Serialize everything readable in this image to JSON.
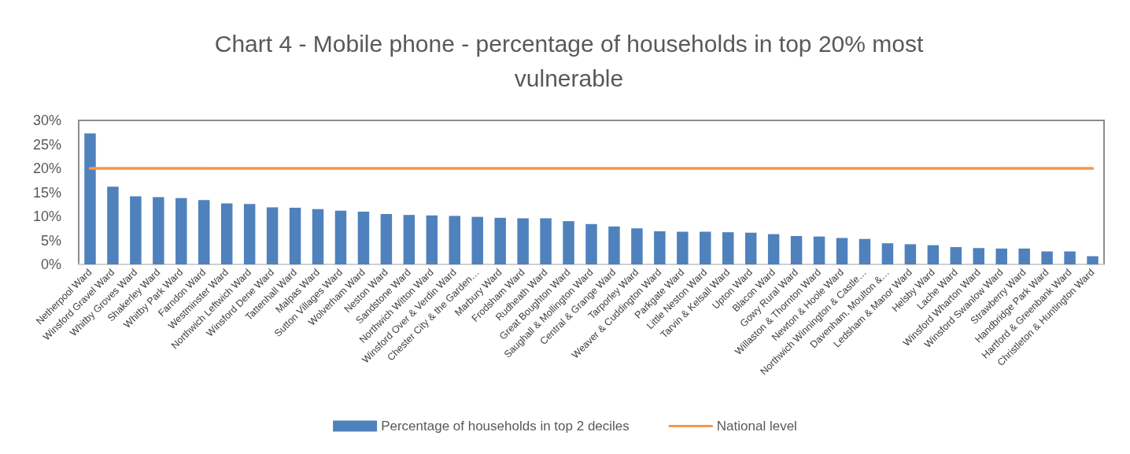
{
  "chart_data": {
    "type": "bar",
    "title": "Chart 4 - Mobile phone - percentage of households in top 20% most vulnerable",
    "categories": [
      "Netherpool Ward",
      "Winsford Gravel Ward",
      "Whitby Groves Ward",
      "Shakerley Ward",
      "Whitby Park Ward",
      "Farndon Ward",
      "Westminster Ward",
      "Northwich Leftwich Ward",
      "Winsford Dene Ward",
      "Tattenhall Ward",
      "Malpas Ward",
      "Sutton Villages Ward",
      "Wolverham Ward",
      "Neston Ward",
      "Sandstone Ward",
      "Northwich Witton Ward",
      "Winsford Over & Verdin Ward",
      "Chester City & the Garden…",
      "Marbury Ward",
      "Frodsham Ward",
      "Rudheath Ward",
      "Great Boughton Ward",
      "Saughall & Mollington Ward",
      "Central & Grange Ward",
      "Tarporley Ward",
      "Weaver & Cuddington Ward",
      "Parkgate Ward",
      "Little Neston Ward",
      "Tarvin & Kelsall Ward",
      "Upton Ward",
      "Blacon Ward",
      "Gowy Rural Ward",
      "Willaston & Thornton Ward",
      "Newton & Hoole Ward",
      "Northwich Winnington & Castle…",
      "Davenham, Moulton &…",
      "Ledsham & Manor Ward",
      "Helsby Ward",
      "Lache Ward",
      "Winsford Wharton Ward",
      "Winsford Swanlow Ward",
      "Strawberry Ward",
      "Handbridge Park Ward",
      "Hartford & Greenbank Ward",
      "Christleton & Huntington Ward"
    ],
    "series": [
      {
        "name": "Percentage of households in top 2 deciles",
        "color": "#4f81bd",
        "values": [
          27.3,
          16.2,
          14.2,
          14.0,
          13.8,
          13.4,
          12.7,
          12.6,
          11.9,
          11.8,
          11.5,
          11.2,
          11.0,
          10.5,
          10.3,
          10.2,
          10.1,
          9.9,
          9.7,
          9.6,
          9.6,
          9.0,
          8.4,
          7.9,
          7.5,
          6.9,
          6.8,
          6.8,
          6.7,
          6.6,
          6.3,
          5.9,
          5.8,
          5.5,
          5.3,
          4.4,
          4.2,
          4.0,
          3.6,
          3.4,
          3.3,
          3.3,
          2.7,
          2.7,
          1.7
        ]
      },
      {
        "name": "National level",
        "type": "line",
        "color": "#f79646",
        "marker": "none",
        "values": [
          20,
          20,
          20,
          20,
          20,
          20,
          20,
          20,
          20,
          20,
          20,
          20,
          20,
          20,
          20,
          20,
          20,
          20,
          20,
          20,
          20,
          20,
          20,
          20,
          20,
          20,
          20,
          20,
          20,
          20,
          20,
          20,
          20,
          20,
          20,
          20,
          20,
          20,
          20,
          20,
          20,
          20,
          20,
          20,
          20
        ]
      }
    ],
    "ylim": [
      0,
      30
    ],
    "yticks": [
      {
        "value": 0,
        "label": "0%"
      },
      {
        "value": 5,
        "label": "5%"
      },
      {
        "value": 10,
        "label": "10%"
      },
      {
        "value": 15,
        "label": "15%"
      },
      {
        "value": 20,
        "label": "20%"
      },
      {
        "value": 25,
        "label": "25%"
      },
      {
        "value": 30,
        "label": "30%"
      }
    ],
    "grid": false,
    "legend": "bottom"
  }
}
